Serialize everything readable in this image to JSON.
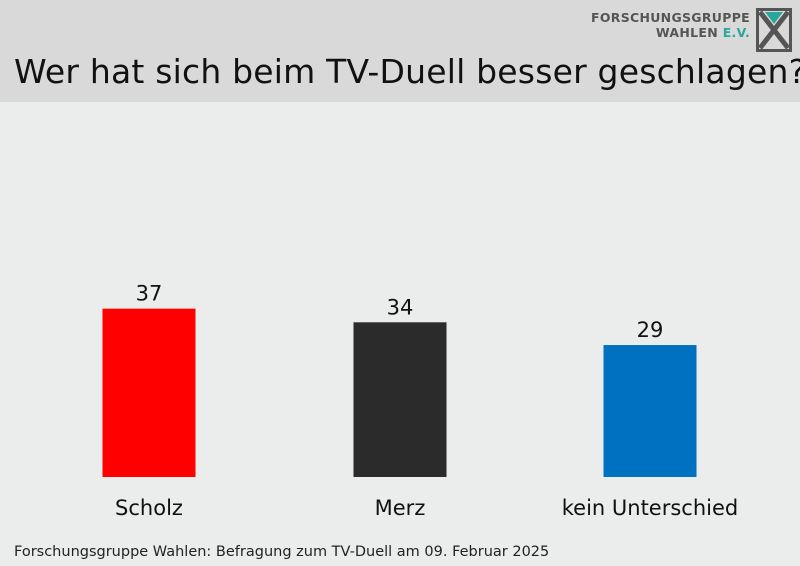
{
  "logo": {
    "line1": "FORSCHUNGSGRUPPE",
    "line2_main": "WAHLEN",
    "line2_accent": "E.V.",
    "icon": "x-logo-icon"
  },
  "chart_data": {
    "type": "bar",
    "title": "Wer hat sich beim TV-Duell besser geschlagen?",
    "categories": [
      "Scholz",
      "Merz",
      "kein Unterschied"
    ],
    "values": [
      37,
      34,
      29
    ],
    "colors": [
      "#ff0000",
      "#2b2b2b",
      "#0070c0"
    ],
    "data_labels": [
      "37",
      "34",
      "29"
    ],
    "ylim": [
      0,
      60
    ],
    "grid": false,
    "legend": false,
    "xlabel": "",
    "ylabel": ""
  },
  "footer": {
    "source": "Forschungsgruppe Wahlen: Befragung zum TV-Duell am 09. Februar 2025"
  },
  "colors": {
    "background": "#eaedeb",
    "header": "#d9d9d9",
    "accent": "#2aa79b"
  }
}
